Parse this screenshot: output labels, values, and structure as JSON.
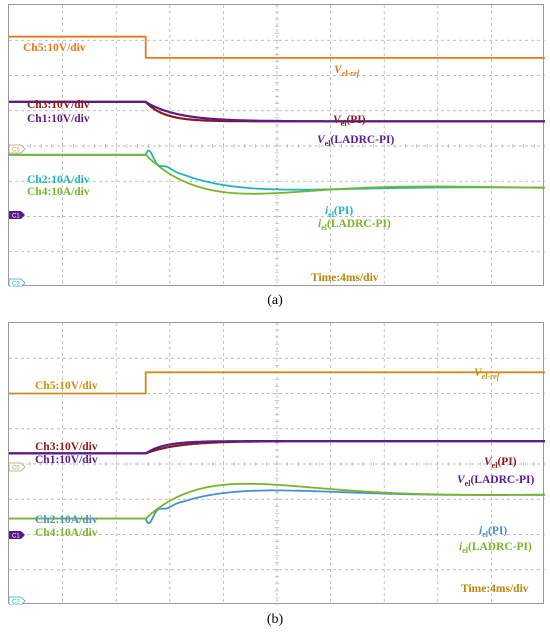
{
  "colors": {
    "ch5": "#e9771c",
    "ch5_b": "#c79012",
    "ch3": "#8b1a1a",
    "ch1": "#5a1c8a",
    "ch2": "#1fb5c2",
    "ch2_b": "#4a8fd0",
    "ch4": "#79b52a",
    "time": "#b8860b",
    "grid": "#aaaaaa"
  },
  "chart_data": [
    {
      "type": "line",
      "panel": "(a)",
      "x_units": "div (4 ms/div)",
      "x_range": [
        0,
        10
      ],
      "y_units": "div",
      "y_range": [
        -4,
        4
      ],
      "grid": true,
      "channel_labels": {
        "ch5": "Ch5:10V/div",
        "ch3": "Ch3:10V/div",
        "ch1": "Ch1:10V/div",
        "ch2": "Ch2:10A/div",
        "ch4": "Ch4:10A/div"
      },
      "annotations": {
        "vref_main": "V",
        "vref_sub": "el-ref",
        "v_pi_main": "V",
        "v_pi_sub": "el",
        "v_pi_tail": "(PI)",
        "v_ladrc_main": "V",
        "v_ladrc_sub": "el",
        "v_ladrc_tail": "(LADRC-PI)",
        "i_pi_main": "i",
        "i_pi_sub": "el",
        "i_pi_tail": "(PI)",
        "i_ladrc_main": "i",
        "i_ladrc_sub": "el",
        "i_ladrc_tail": "(LADRC-PI)",
        "time": "Time:4ms/div"
      },
      "markers": {
        "c5": "C5",
        "c1": "C1",
        "c2": "C2"
      },
      "step_x": 2.55,
      "series": [
        {
          "name": "Ch5",
          "shape": "step",
          "before": 3.1,
          "after": 2.5
        },
        {
          "name": "Ch3",
          "shape": "first_order",
          "before": 1.25,
          "after": 0.7,
          "tau": 0.35
        },
        {
          "name": "Ch1",
          "shape": "first_order",
          "before": 1.25,
          "after": 0.7,
          "tau": 0.6
        },
        {
          "name": "Ch2",
          "shape": "osc",
          "before": -0.25,
          "final": -1.2,
          "dip": 0.5,
          "ring": 0.3
        },
        {
          "name": "Ch4",
          "shape": "underdamped",
          "before": -0.25,
          "final": -1.2,
          "dip": 0.85,
          "omega": 0.75,
          "zeta": 0.5
        }
      ]
    },
    {
      "type": "line",
      "panel": "(b)",
      "x_units": "div (4 ms/div)",
      "x_range": [
        0,
        10
      ],
      "y_units": "div",
      "y_range": [
        -4,
        4
      ],
      "grid": true,
      "channel_labels": {
        "ch5": "Ch5:10V/div",
        "ch3": "Ch3:10V/div",
        "ch1": "Ch1:10V/div",
        "ch2": "Ch2:10A/div",
        "ch4": "Ch4:10A/div"
      },
      "annotations": {
        "vref_main": "V",
        "vref_sub": "el-ref",
        "v_pi_main": "V",
        "v_pi_sub": "el",
        "v_pi_tail": "(PI)",
        "v_ladrc_main": "V",
        "v_ladrc_sub": "el",
        "v_ladrc_tail": "(LADRC-PI)",
        "i_pi_main": "i",
        "i_pi_sub": "el",
        "i_pi_tail": "(PI)",
        "i_ladrc_main": "i",
        "i_ladrc_sub": "el",
        "i_ladrc_tail": "(LADRC-PI)",
        "time": "Time:4ms/div"
      },
      "markers": {
        "c5": "C5",
        "c1": "C1",
        "c2": "C2"
      },
      "step_x": 2.55,
      "series": [
        {
          "name": "Ch5",
          "shape": "step",
          "before": 2.0,
          "after": 2.6
        },
        {
          "name": "Ch3",
          "shape": "first_order",
          "before": 0.3,
          "after": 0.65,
          "tau": 0.6
        },
        {
          "name": "Ch1",
          "shape": "first_order",
          "before": 0.3,
          "after": 0.65,
          "tau": 0.35
        },
        {
          "name": "Ch2",
          "shape": "bump",
          "before": -1.55,
          "final": -0.85,
          "peak": 0.6,
          "ring": 0.3
        },
        {
          "name": "Ch4",
          "shape": "underdamped",
          "before": -1.55,
          "final": -0.85,
          "peak": 1.3,
          "omega": 0.6,
          "zeta": 0.55
        }
      ]
    }
  ],
  "captions": {
    "a": "(a)",
    "b": "(b)"
  }
}
